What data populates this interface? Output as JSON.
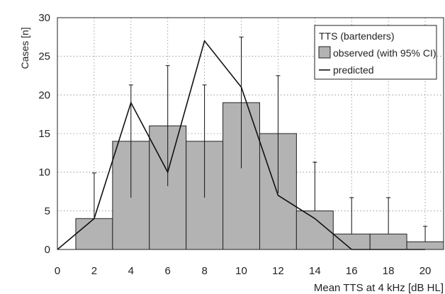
{
  "chart_data": {
    "type": "bar",
    "title": "",
    "xlabel": "Mean TTS at 4 kHz [dB HL]",
    "ylabel": "Cases [n]",
    "xlim": [
      0,
      21
    ],
    "ylim": [
      0,
      30
    ],
    "x_ticks": [
      "0",
      "2",
      "4",
      "6",
      "8",
      "10",
      "12",
      "14",
      "16",
      "18",
      "20"
    ],
    "y_ticks": [
      "0",
      "5",
      "10",
      "15",
      "20",
      "25",
      "30"
    ],
    "grid": true,
    "legend": {
      "position": "top-right",
      "title": "TTS (bartenders)",
      "entries": [
        "observed (with 95% CI)",
        "predicted"
      ]
    },
    "series": [
      {
        "name": "observed (with 95% CI)",
        "kind": "bar",
        "color": "#b3b3b3",
        "x": [
          2,
          4,
          6,
          8,
          10,
          12,
          14,
          16,
          18,
          20
        ],
        "values": [
          4,
          14,
          16,
          14,
          19,
          15,
          5,
          2,
          2,
          1
        ],
        "ci_upper": [
          9.9,
          21.3,
          23.8,
          21.3,
          27.5,
          22.5,
          11.3,
          6.7,
          6.7,
          3.0
        ],
        "ci_lower": [
          4.0,
          6.7,
          8.2,
          6.7,
          10.5,
          7.3,
          5.0,
          2.0,
          2.0,
          1.0
        ]
      },
      {
        "name": "predicted",
        "kind": "line",
        "color": "#111111",
        "x": [
          0,
          2,
          4,
          6,
          8,
          10,
          12,
          14,
          16,
          18,
          20
        ],
        "values": [
          0,
          4,
          19,
          10,
          27,
          21,
          7,
          4,
          0,
          0,
          0
        ]
      }
    ]
  }
}
